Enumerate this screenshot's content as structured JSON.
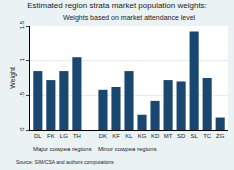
{
  "chart_data": {
    "type": "bar",
    "title": "Estimated region strata market population weights:",
    "subtitle": "Weights based on market attendance level",
    "y_label": "Weight",
    "categories": [
      "DL",
      "FK",
      "LG",
      "TH",
      null,
      "DK",
      "KF",
      "KL",
      "KG",
      "KD",
      "MT",
      "SD",
      "SL",
      "TC",
      "ZG"
    ],
    "values": [
      0.85,
      0.72,
      0.85,
      1.05,
      null,
      0.58,
      0.62,
      0.85,
      0.22,
      0.42,
      0.72,
      0.7,
      1.42,
      0.75,
      0.18
    ],
    "color": "#1a476f",
    "ylim": [
      0,
      1.5
    ],
    "yticks": [
      0,
      {
        "value": 0.5,
        "label": ".5"
      },
      1,
      1.5
    ],
    "grid": true,
    "annotations": [
      {
        "text": "Major cowpea regions",
        "category": "DL"
      },
      {
        "text": "Minor cowpea regions",
        "category": "DK"
      },
      {
        "text": "Source: SIM/CSA and authors computations"
      }
    ]
  }
}
